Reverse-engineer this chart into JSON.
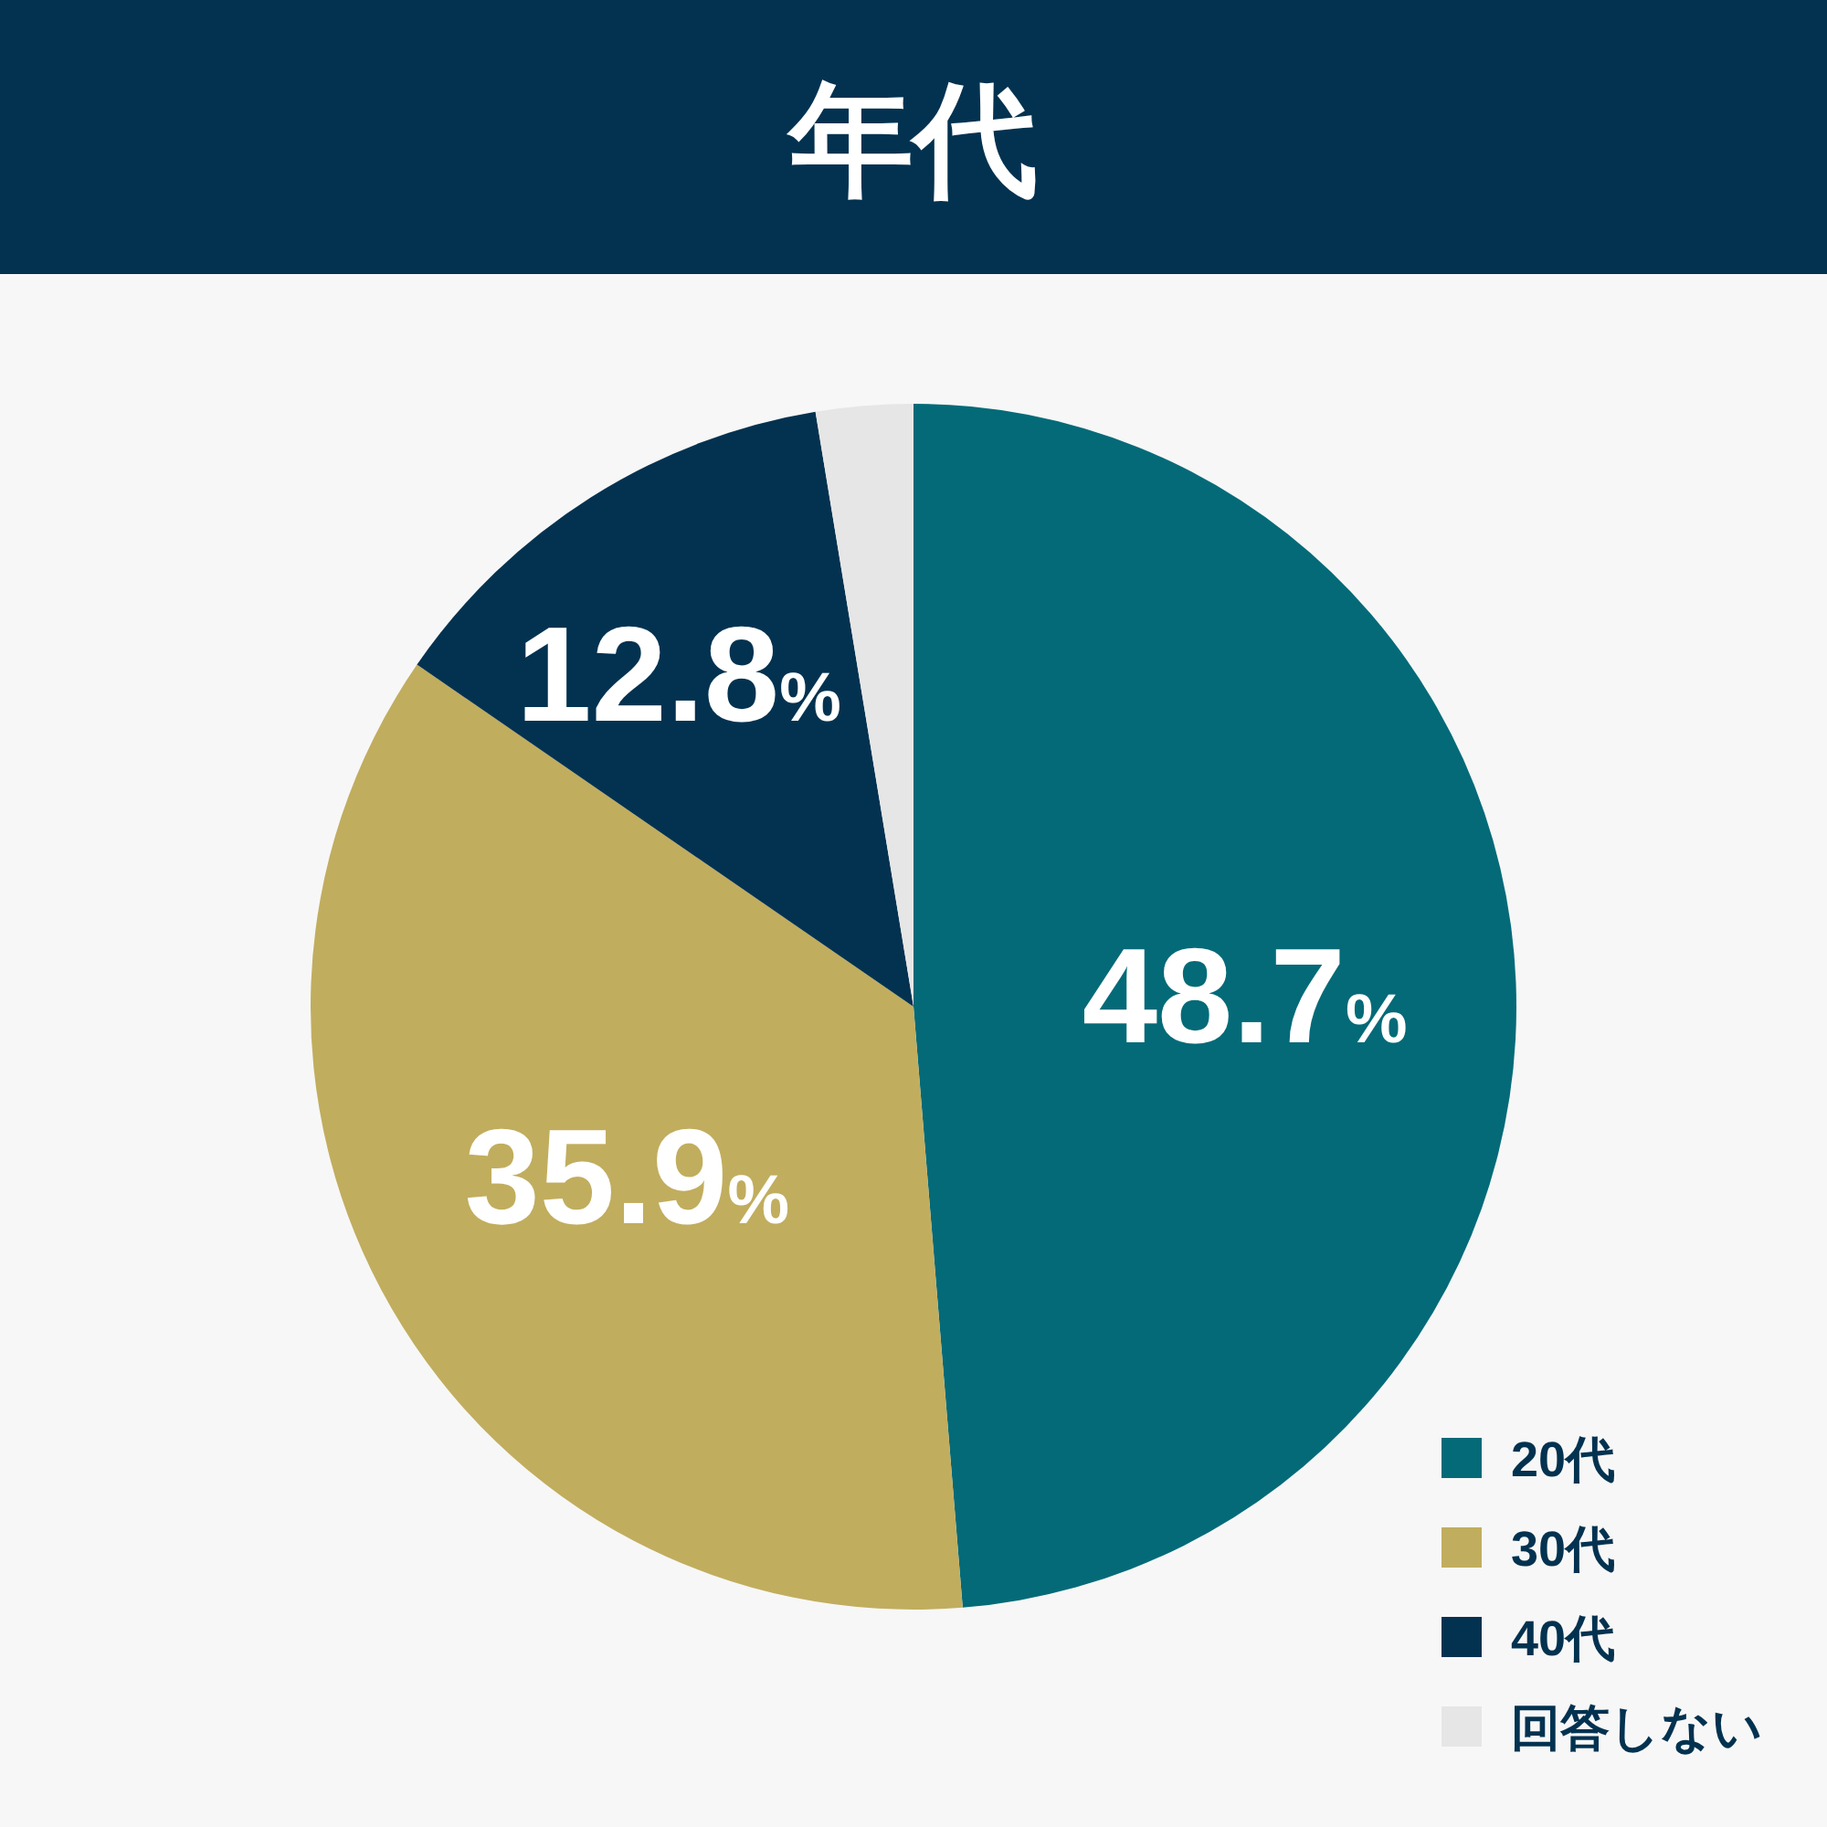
{
  "chart_data": {
    "type": "pie",
    "title": "年代",
    "categories": [
      "20代",
      "30代",
      "40代",
      "回答しない"
    ],
    "values": [
      48.7,
      35.9,
      12.8,
      2.6
    ],
    "colors": [
      "#046a78",
      "#c1ad5e",
      "#033250",
      "#e6e6e6"
    ],
    "value_labels": [
      "48.7%",
      "35.9%",
      "12.8%",
      null
    ],
    "legend": "bottom right"
  }
}
